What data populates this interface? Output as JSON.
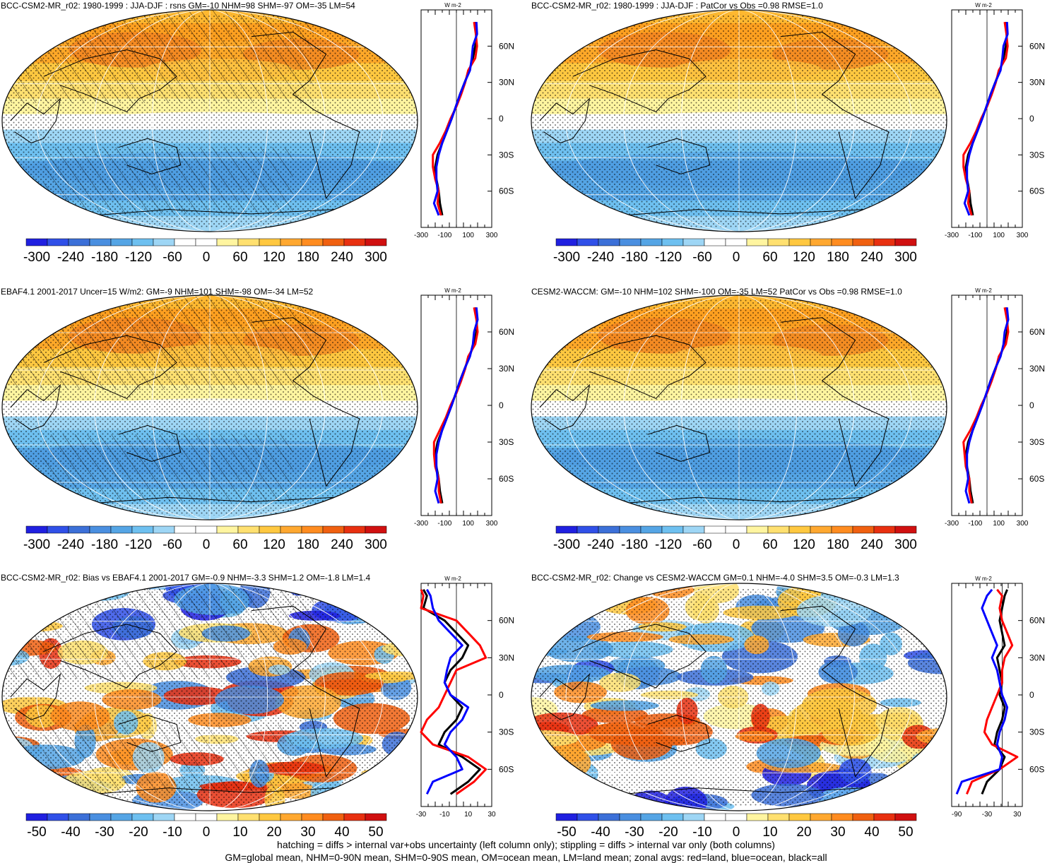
{
  "panels": [
    {
      "title": "BCC-CSM2-MR_r02: 1980-1999 : JJA-DJF : rsns GM=-10 NHM=98 SHM=-97 OM=-35 LM=54",
      "pattern": "seasonal"
    },
    {
      "title": "BCC-CSM2-MR_r02: 1980-1999 : JJA-DJF : PatCor vs Obs =0.98 RMSE=1.0",
      "pattern": "seasonal"
    },
    {
      "title": "EBAF4.1 2001-2017 Uncer=15 W/m2: GM=-9 NHM=101 SHM=-98 OM=-34 LM=52",
      "pattern": "seasonal"
    },
    {
      "title": "CESM2-WACCM: GM=-10 NHM=102 SHM=-100 OM=-35 LM=52 PatCor vs Obs =0.98 RMSE=1.0",
      "pattern": "seasonal"
    },
    {
      "title": "BCC-CSM2-MR_r02: Bias vs EBAF4.1 2001-2017 GM=-0.9 NHM=-3.3 SHM=1.2 OM=-1.8 LM=1.4",
      "pattern": "diff"
    },
    {
      "title": "BCC-CSM2-MR_r02: Change vs CESM2-WACCM GM=0.1 NHM=-4.0 SHM=3.5 OM=-0.3 LM=1.3",
      "pattern": "diff"
    }
  ],
  "chart_data": [
    {
      "type": "heatmap",
      "title": "BCC-CSM2-MR_r02: 1980-1999 : JJA-DJF : rsns GM=-10 NHM=98 SHM=-97 OM=-35 LM=54",
      "colorbar_ticks": [
        "-300",
        "-240",
        "-180",
        "-120",
        "-60",
        "0",
        "60",
        "120",
        "180",
        "240",
        "300"
      ],
      "zonal_mean": {
        "ylim": [
          -90,
          90
        ],
        "xlim": [
          -300,
          300
        ],
        "xticks": [
          "-300",
          "-100",
          "100",
          "300"
        ],
        "yticks": [
          "60N",
          "30N",
          "0",
          "30S",
          "60S"
        ],
        "units": "W m-2",
        "lat": [
          80,
          70,
          60,
          50,
          40,
          30,
          20,
          10,
          0,
          -10,
          -20,
          -30,
          -40,
          -50,
          -60,
          -70,
          -80
        ],
        "series": [
          {
            "color": "#000000",
            "values": [
              160,
              170,
              160,
              140,
              110,
              70,
              30,
              -5,
              -40,
              -80,
              -120,
              -160,
              -180,
              -170,
              -150,
              -140,
              -120
            ]
          },
          {
            "color": "#ff0000",
            "values": [
              150,
              165,
              175,
              160,
              100,
              75,
              40,
              0,
              -50,
              -90,
              -140,
              -200,
              -200,
              -180,
              -150,
              -160,
              -130
            ]
          },
          {
            "color": "#0000ff",
            "values": [
              170,
              175,
              140,
              130,
              115,
              70,
              30,
              -5,
              -40,
              -80,
              -120,
              -150,
              -170,
              -170,
              -160,
              -190,
              -150
            ]
          }
        ]
      }
    },
    {
      "type": "heatmap",
      "title": "BCC-CSM2-MR_r02: 1980-1999 : JJA-DJF : PatCor vs Obs =0.98 RMSE=1.0",
      "colorbar_ticks": [
        "-300",
        "-240",
        "-180",
        "-120",
        "-60",
        "0",
        "60",
        "120",
        "180",
        "240",
        "300"
      ],
      "zonal_mean": {
        "ylim": [
          -90,
          90
        ],
        "xlim": [
          -300,
          300
        ],
        "xticks": [
          "-300",
          "-100",
          "100",
          "300"
        ],
        "yticks": [
          "60N",
          "30N",
          "0",
          "30S",
          "60S"
        ],
        "units": "W m-2",
        "lat": [
          80,
          70,
          60,
          50,
          40,
          30,
          20,
          10,
          0,
          -10,
          -20,
          -30,
          -40,
          -50,
          -60,
          -70,
          -80
        ],
        "series": [
          {
            "color": "#000000",
            "values": [
              160,
              170,
              160,
              140,
              110,
              70,
              30,
              -5,
              -40,
              -80,
              -120,
              -160,
              -180,
              -170,
              -150,
              -140,
              -120
            ]
          },
          {
            "color": "#ff0000",
            "values": [
              150,
              165,
              175,
              160,
              100,
              75,
              40,
              0,
              -50,
              -90,
              -140,
              -200,
              -200,
              -180,
              -150,
              -160,
              -130
            ]
          },
          {
            "color": "#0000ff",
            "values": [
              170,
              175,
              140,
              130,
              115,
              70,
              30,
              -5,
              -40,
              -80,
              -120,
              -150,
              -170,
              -170,
              -160,
              -190,
              -150
            ]
          }
        ]
      }
    },
    {
      "type": "heatmap",
      "title": "EBAF4.1 2001-2017 Uncer=15 W/m2: GM=-9 NHM=101 SHM=-98 OM=-34 LM=52",
      "colorbar_ticks": [
        "-300",
        "-240",
        "-180",
        "-120",
        "-60",
        "0",
        "60",
        "120",
        "180",
        "240",
        "300"
      ],
      "zonal_mean": {
        "ylim": [
          -90,
          90
        ],
        "xlim": [
          -300,
          300
        ],
        "xticks": [
          "-300",
          "-100",
          "100",
          "300"
        ],
        "yticks": [
          "60N",
          "30N",
          "0",
          "30S",
          "60S"
        ],
        "units": "W m-2",
        "lat": [
          80,
          70,
          60,
          50,
          40,
          30,
          20,
          10,
          0,
          -10,
          -20,
          -30,
          -40,
          -50,
          -60,
          -70,
          -80
        ],
        "series": [
          {
            "color": "#000000",
            "values": [
              160,
              175,
              170,
              150,
              110,
              70,
              30,
              -5,
              -40,
              -80,
              -120,
              -160,
              -180,
              -170,
              -150,
              -140,
              -120
            ]
          },
          {
            "color": "#ff0000",
            "values": [
              150,
              170,
              180,
              160,
              100,
              75,
              40,
              0,
              -50,
              -90,
              -140,
              -190,
              -190,
              -180,
              -150,
              -150,
              -130
            ]
          },
          {
            "color": "#0000ff",
            "values": [
              170,
              180,
              150,
              140,
              115,
              70,
              30,
              -5,
              -40,
              -80,
              -120,
              -150,
              -170,
              -170,
              -160,
              -180,
              -150
            ]
          }
        ]
      }
    },
    {
      "type": "heatmap",
      "title": "CESM2-WACCM: GM=-10 NHM=102 SHM=-100 OM=-35 LM=52 PatCor vs Obs =0.98 RMSE=1.0",
      "colorbar_ticks": [
        "-300",
        "-240",
        "-180",
        "-120",
        "-60",
        "0",
        "60",
        "120",
        "180",
        "240",
        "300"
      ],
      "zonal_mean": {
        "ylim": [
          -90,
          90
        ],
        "xlim": [
          -300,
          300
        ],
        "xticks": [
          "-300",
          "-100",
          "100",
          "300"
        ],
        "yticks": [
          "60N",
          "30N",
          "0",
          "30S",
          "60S"
        ],
        "units": "W m-2",
        "lat": [
          80,
          70,
          60,
          50,
          40,
          30,
          20,
          10,
          0,
          -10,
          -20,
          -30,
          -40,
          -50,
          -60,
          -70,
          -80
        ],
        "series": [
          {
            "color": "#000000",
            "values": [
              160,
              175,
              170,
              150,
              110,
              70,
              30,
              -5,
              -40,
              -80,
              -120,
              -160,
              -180,
              -170,
              -150,
              -140,
              -120
            ]
          },
          {
            "color": "#ff0000",
            "values": [
              150,
              170,
              180,
              160,
              100,
              75,
              40,
              0,
              -50,
              -90,
              -140,
              -200,
              -190,
              -180,
              -150,
              -150,
              -130
            ]
          },
          {
            "color": "#0000ff",
            "values": [
              170,
              180,
              150,
              140,
              115,
              70,
              30,
              -5,
              -40,
              -80,
              -120,
              -150,
              -170,
              -170,
              -160,
              -180,
              -150
            ]
          }
        ]
      }
    },
    {
      "type": "heatmap",
      "title": "BCC-CSM2-MR_r02: Bias vs EBAF4.1 2001-2017 GM=-0.9 NHM=-3.3 SHM=1.2 OM=-1.8 LM=1.4",
      "colorbar_ticks": [
        "-50",
        "-40",
        "-30",
        "-20",
        "-10",
        "0",
        "10",
        "20",
        "30",
        "40",
        "50"
      ],
      "zonal_mean": {
        "ylim": [
          -90,
          90
        ],
        "xlim": [
          -30,
          30
        ],
        "xticks": [
          "-30",
          "-10",
          "10",
          "30"
        ],
        "yticks": [
          "60N",
          "30N",
          "0",
          "30S",
          "60S"
        ],
        "units": "W m-2",
        "lat": [
          85,
          80,
          70,
          60,
          50,
          40,
          30,
          20,
          10,
          0,
          -10,
          -20,
          -30,
          -40,
          -50,
          -60,
          -70,
          -80
        ],
        "series": [
          {
            "color": "#000000",
            "values": [
              -28,
              -25,
              -28,
              -10,
              0,
              10,
              5,
              -5,
              -10,
              -5,
              5,
              0,
              -10,
              -15,
              5,
              20,
              10,
              -5
            ],
            "color_name": "all"
          },
          {
            "color": "#ff0000",
            "values": [
              -30,
              -28,
              -30,
              0,
              10,
              20,
              25,
              0,
              -5,
              -10,
              -15,
              -25,
              -30,
              -20,
              10,
              25,
              15,
              0
            ]
          },
          {
            "color": "#0000ff",
            "values": [
              -25,
              -22,
              -20,
              -15,
              -5,
              5,
              -5,
              -8,
              -10,
              -5,
              10,
              5,
              -5,
              -10,
              0,
              5,
              -20,
              -25
            ]
          }
        ]
      }
    },
    {
      "type": "heatmap",
      "title": "BCC-CSM2-MR_r02: Change vs CESM2-WACCM GM=0.1 NHM=-4.0 SHM=3.5 OM=-0.3 LM=1.3",
      "colorbar_ticks": [
        "-50",
        "-40",
        "-30",
        "-20",
        "-10",
        "0",
        "10",
        "20",
        "30",
        "40",
        "50"
      ],
      "zonal_mean": {
        "ylim": [
          -90,
          90
        ],
        "xlim": [
          -100,
          40
        ],
        "xticks": [
          "-90",
          "-30",
          "30"
        ],
        "yticks": [
          "60N",
          "30N",
          "0",
          "30S",
          "60S"
        ],
        "units": "W m-2",
        "lat": [
          85,
          80,
          70,
          60,
          50,
          40,
          30,
          20,
          10,
          0,
          -10,
          -20,
          -30,
          -40,
          -50,
          -60,
          -70,
          -80
        ],
        "series": [
          {
            "color": "#000000",
            "values": [
              10,
              5,
              0,
              -5,
              0,
              5,
              -10,
              -5,
              0,
              -5,
              5,
              0,
              -10,
              -15,
              5,
              -5,
              -30,
              -40
            ]
          },
          {
            "color": "#ff0000",
            "values": [
              -10,
              0,
              -5,
              0,
              10,
              20,
              5,
              0,
              0,
              -10,
              -20,
              -30,
              -35,
              -20,
              30,
              -5,
              -60,
              -70
            ]
          },
          {
            "color": "#0000ff",
            "values": [
              -20,
              -30,
              -40,
              -30,
              -20,
              -10,
              -20,
              -10,
              -5,
              0,
              10,
              5,
              -5,
              -10,
              0,
              -5,
              -80,
              -90
            ]
          }
        ]
      }
    }
  ],
  "footer": {
    "line1": "hatching = diffs > internal var+obs uncertainty (left column only); stippling = diffs > internal var only (both columns)",
    "line2": "GM=global mean, NHM=0-90N mean, SHM=0-90S mean, OM=ocean mean, LM=land mean; zonal avgs: red=land, blue=ocean, black=all"
  },
  "colors": {
    "palette": [
      "#2020e0",
      "#3050e8",
      "#3c70d8",
      "#4a8fe0",
      "#55a5e5",
      "#6ec0f0",
      "#9ed6f5",
      "#ffffff",
      "#ffffff",
      "#fff5a0",
      "#ffe070",
      "#ffc840",
      "#ffa830",
      "#ff8c20",
      "#f06010",
      "#e83010",
      "#d01010"
    ]
  }
}
